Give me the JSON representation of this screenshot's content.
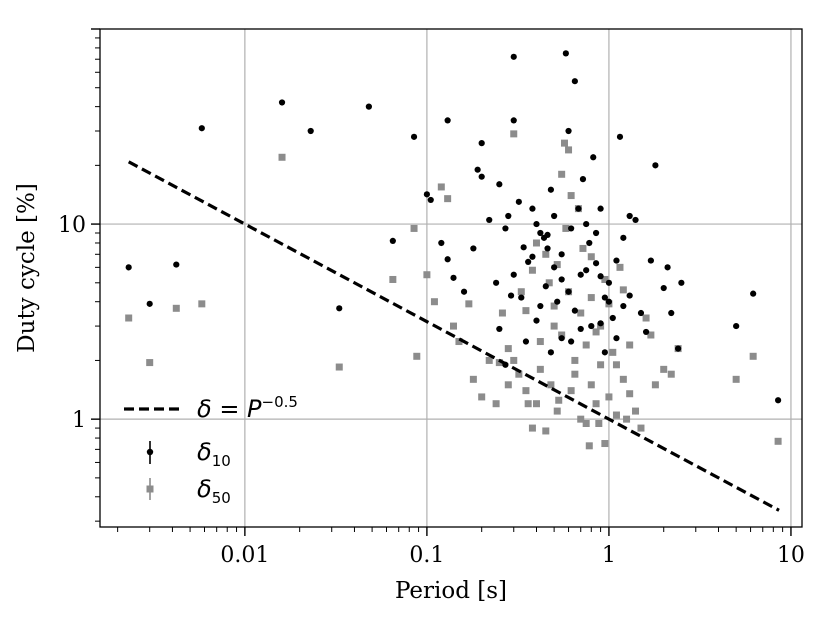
{
  "chart_data": {
    "type": "scatter",
    "xlabel": "Period [s]",
    "ylabel": "Duty cycle [%]",
    "xscale": "log",
    "yscale": "log",
    "xlim": [
      0.0016,
      11.5
    ],
    "ylim": [
      0.28,
      100
    ],
    "x_ticks": [
      0.01,
      0.1,
      1,
      10
    ],
    "x_tick_labels": [
      "0.01",
      "0.1",
      "1",
      "10"
    ],
    "y_ticks": [
      1,
      10
    ],
    "y_tick_labels": [
      "1",
      "10"
    ],
    "grid": true,
    "legend_position": "bottom-left",
    "legend": {
      "line": {
        "prefix": "δ = P",
        "exponent": "−0.5"
      },
      "series_1": {
        "symbol": "δ",
        "sub": "10"
      },
      "series_2": {
        "symbol": "δ",
        "sub": "50"
      }
    },
    "colors": {
      "d10": "#000000",
      "d50": "#8c8c8c",
      "grid": "#b0b0b0",
      "line": "#000000"
    },
    "line": {
      "exponent": -0.5,
      "coefficient": 1,
      "x_range": [
        0.0023,
        8.6
      ]
    },
    "series": [
      {
        "key": "d10",
        "points": [
          [
            0.0023,
            6.0
          ],
          [
            0.003,
            3.9
          ],
          [
            0.0042,
            6.2
          ],
          [
            0.0058,
            31
          ],
          [
            0.016,
            42
          ],
          [
            0.023,
            30
          ],
          [
            0.033,
            3.7
          ],
          [
            0.048,
            40
          ],
          [
            0.065,
            8.2
          ],
          [
            0.085,
            28
          ],
          [
            0.1,
            14.2
          ],
          [
            0.105,
            13.3
          ],
          [
            0.12,
            8.0
          ],
          [
            0.13,
            6.6
          ],
          [
            0.13,
            34
          ],
          [
            0.14,
            5.3
          ],
          [
            0.16,
            4.5
          ],
          [
            0.18,
            7.5
          ],
          [
            0.19,
            19
          ],
          [
            0.2,
            26
          ],
          [
            0.2,
            17.5
          ],
          [
            0.22,
            10.5
          ],
          [
            0.24,
            5.0
          ],
          [
            0.25,
            16
          ],
          [
            0.27,
            9.5
          ],
          [
            0.28,
            11
          ],
          [
            0.29,
            4.3
          ],
          [
            0.3,
            72
          ],
          [
            0.3,
            34
          ],
          [
            0.32,
            13
          ],
          [
            0.34,
            7.6
          ],
          [
            0.36,
            6.4
          ],
          [
            0.38,
            12
          ],
          [
            0.4,
            10
          ],
          [
            0.42,
            9
          ],
          [
            0.44,
            8.5
          ],
          [
            0.46,
            7.5
          ],
          [
            0.48,
            15
          ],
          [
            0.5,
            11
          ],
          [
            0.52,
            4.0
          ],
          [
            0.55,
            2.6
          ],
          [
            0.58,
            75
          ],
          [
            0.6,
            30
          ],
          [
            0.62,
            9.5
          ],
          [
            0.65,
            54
          ],
          [
            0.68,
            12
          ],
          [
            0.7,
            5.5
          ],
          [
            0.72,
            17
          ],
          [
            0.75,
            10
          ],
          [
            0.78,
            8.0
          ],
          [
            0.8,
            3.0
          ],
          [
            0.82,
            22
          ],
          [
            0.85,
            9.0
          ],
          [
            0.9,
            12
          ],
          [
            0.95,
            4.2
          ],
          [
            1.0,
            5.0
          ],
          [
            1.05,
            3.3
          ],
          [
            1.1,
            6.5
          ],
          [
            1.15,
            28
          ],
          [
            1.2,
            8.5
          ],
          [
            1.3,
            11
          ],
          [
            1.4,
            10.5
          ],
          [
            1.5,
            3.5
          ],
          [
            1.6,
            2.8
          ],
          [
            1.7,
            6.5
          ],
          [
            1.8,
            20
          ],
          [
            2.0,
            4.7
          ],
          [
            2.1,
            6.0
          ],
          [
            2.2,
            3.5
          ],
          [
            2.4,
            2.3
          ],
          [
            2.5,
            5.0
          ],
          [
            5.0,
            3.0
          ],
          [
            6.2,
            4.4
          ],
          [
            8.5,
            1.25
          ],
          [
            0.35,
            2.5
          ],
          [
            0.4,
            3.2
          ],
          [
            0.45,
            4.8
          ],
          [
            0.5,
            6.0
          ],
          [
            0.55,
            7.0
          ],
          [
            0.6,
            4.5
          ],
          [
            0.65,
            3.6
          ],
          [
            0.7,
            2.9
          ],
          [
            0.75,
            5.8
          ],
          [
            0.85,
            6.3
          ],
          [
            0.9,
            3.1
          ],
          [
            1.0,
            4.0
          ],
          [
            1.1,
            2.6
          ],
          [
            1.2,
            3.8
          ],
          [
            0.3,
            5.5
          ],
          [
            0.25,
            2.9
          ],
          [
            0.42,
            3.8
          ],
          [
            0.48,
            2.2
          ],
          [
            0.38,
            6.8
          ],
          [
            0.33,
            4.2
          ],
          [
            0.62,
            2.5
          ],
          [
            0.95,
            2.2
          ],
          [
            1.3,
            4.3
          ],
          [
            0.46,
            8.8
          ],
          [
            0.27,
            1.9
          ],
          [
            0.9,
            5.4
          ],
          [
            0.55,
            5.2
          ]
        ]
      },
      {
        "key": "d50",
        "points": [
          [
            0.0023,
            3.3
          ],
          [
            0.003,
            1.95
          ],
          [
            0.0042,
            3.7
          ],
          [
            0.0058,
            3.9
          ],
          [
            0.016,
            22
          ],
          [
            0.033,
            1.85
          ],
          [
            0.065,
            5.2
          ],
          [
            0.085,
            9.5
          ],
          [
            0.088,
            2.1
          ],
          [
            0.1,
            5.5
          ],
          [
            0.11,
            4.0
          ],
          [
            0.12,
            15.5
          ],
          [
            0.13,
            13.5
          ],
          [
            0.14,
            3.0
          ],
          [
            0.15,
            2.5
          ],
          [
            0.17,
            3.9
          ],
          [
            0.18,
            1.6
          ],
          [
            0.2,
            1.3
          ],
          [
            0.22,
            2.0
          ],
          [
            0.24,
            1.2
          ],
          [
            0.26,
            3.5
          ],
          [
            0.28,
            1.5
          ],
          [
            0.3,
            29
          ],
          [
            0.3,
            2.0
          ],
          [
            0.32,
            1.7
          ],
          [
            0.35,
            1.4
          ],
          [
            0.38,
            0.9
          ],
          [
            0.4,
            1.2
          ],
          [
            0.42,
            1.8
          ],
          [
            0.45,
            0.87
          ],
          [
            0.47,
            5.0
          ],
          [
            0.5,
            3.0
          ],
          [
            0.52,
            1.1
          ],
          [
            0.55,
            18
          ],
          [
            0.57,
            26
          ],
          [
            0.6,
            24
          ],
          [
            0.62,
            1.4
          ],
          [
            0.65,
            2.0
          ],
          [
            0.7,
            1.0
          ],
          [
            0.75,
            0.95
          ],
          [
            0.78,
            0.73
          ],
          [
            0.8,
            1.5
          ],
          [
            0.85,
            2.8
          ],
          [
            0.9,
            1.9
          ],
          [
            0.95,
            0.75
          ],
          [
            1.0,
            1.3
          ],
          [
            1.05,
            2.2
          ],
          [
            1.1,
            1.05
          ],
          [
            1.2,
            1.6
          ],
          [
            1.3,
            2.4
          ],
          [
            1.4,
            1.1
          ],
          [
            1.5,
            0.9
          ],
          [
            1.6,
            3.3
          ],
          [
            1.8,
            1.5
          ],
          [
            2.0,
            1.8
          ],
          [
            2.2,
            1.7
          ],
          [
            2.4,
            2.3
          ],
          [
            5.0,
            1.6
          ],
          [
            6.2,
            2.1
          ],
          [
            8.5,
            0.77
          ],
          [
            0.5,
            3.8
          ],
          [
            0.6,
            4.5
          ],
          [
            0.7,
            3.5
          ],
          [
            0.8,
            4.2
          ],
          [
            0.9,
            3.0
          ],
          [
            1.0,
            3.9
          ],
          [
            1.2,
            4.6
          ],
          [
            0.55,
            2.7
          ],
          [
            0.65,
            1.7
          ],
          [
            0.42,
            2.5
          ],
          [
            0.48,
            1.5
          ],
          [
            0.75,
            2.4
          ],
          [
            0.85,
            1.2
          ],
          [
            1.1,
            1.9
          ],
          [
            1.3,
            1.35
          ],
          [
            0.35,
            3.6
          ],
          [
            0.38,
            5.8
          ],
          [
            0.45,
            7.0
          ],
          [
            0.52,
            6.2
          ],
          [
            0.58,
            9.5
          ],
          [
            0.62,
            14
          ],
          [
            0.68,
            12
          ],
          [
            0.72,
            7.5
          ],
          [
            0.8,
            6.8
          ],
          [
            0.28,
            2.3
          ],
          [
            0.33,
            4.5
          ],
          [
            0.4,
            8.0
          ],
          [
            0.95,
            5.2
          ],
          [
            1.15,
            6.0
          ],
          [
            0.25,
            1.95
          ],
          [
            1.7,
            2.7
          ],
          [
            0.36,
            1.2
          ],
          [
            0.88,
            0.95
          ],
          [
            1.25,
            1.0
          ],
          [
            0.53,
            1.25
          ]
        ]
      }
    ]
  }
}
